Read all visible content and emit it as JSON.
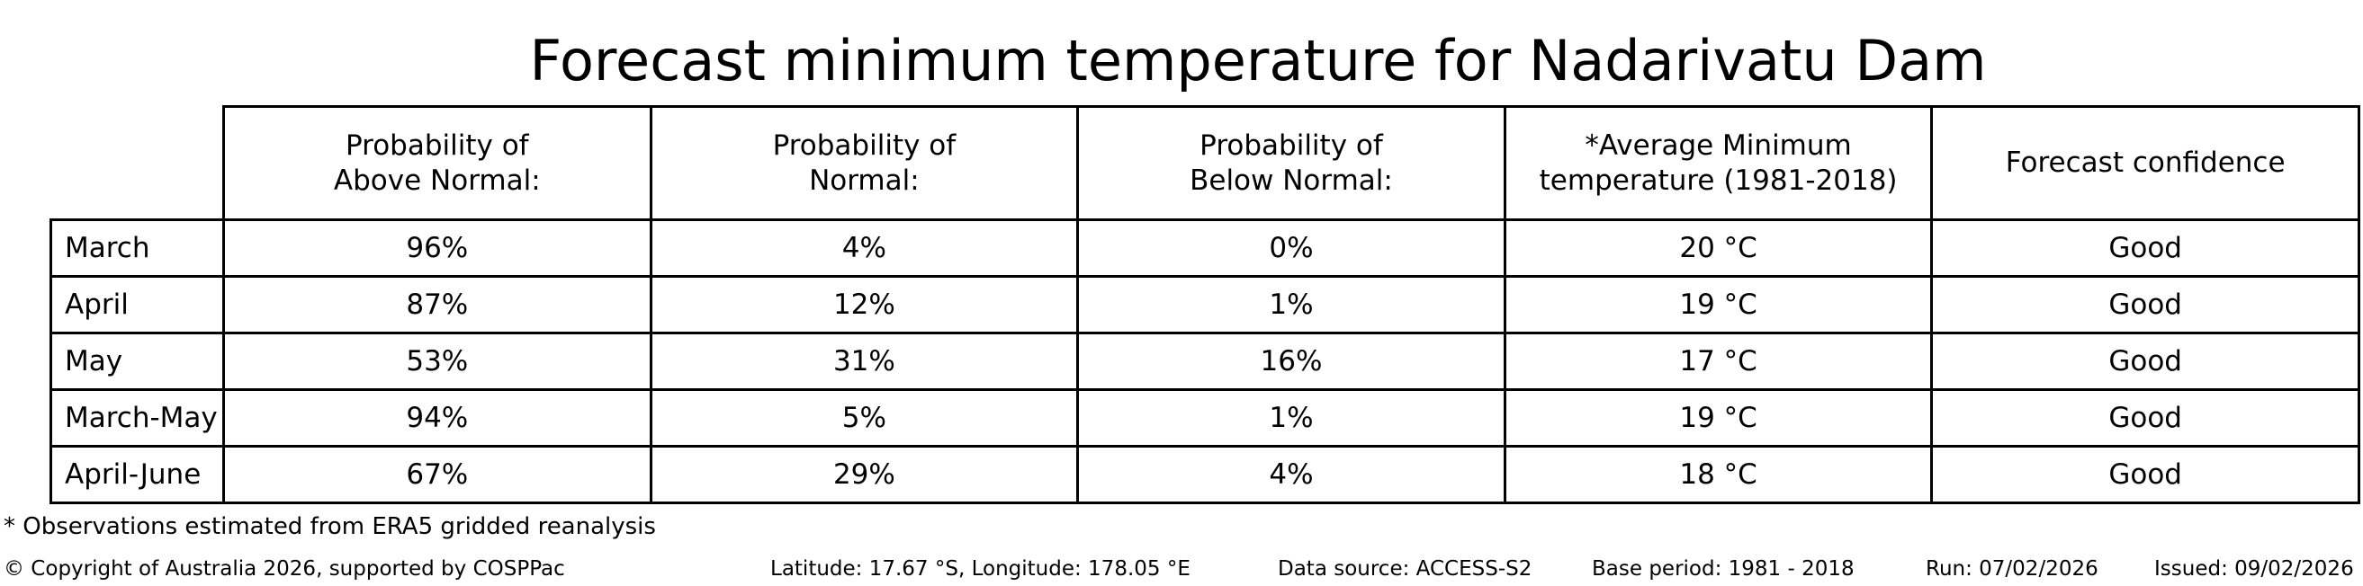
{
  "title": "Forecast minimum temperature for Nadarivatu Dam",
  "colors": {
    "background": "#ffffff",
    "text": "#000000",
    "table_border": "#000000"
  },
  "table": {
    "columns": [
      "Probability of\nAbove Normal:",
      "Probability of\nNormal:",
      "Probability of\nBelow Normal:",
      "*Average Minimum\ntemperature (1981-2018)",
      "Forecast confidence"
    ],
    "rows": [
      {
        "label": "March",
        "above": "96%",
        "normal": "4%",
        "below": "0%",
        "avg_min": "20 °C",
        "confidence": "Good"
      },
      {
        "label": "April",
        "above": "87%",
        "normal": "12%",
        "below": "1%",
        "avg_min": "19 °C",
        "confidence": "Good"
      },
      {
        "label": "May",
        "above": "53%",
        "normal": "31%",
        "below": "16%",
        "avg_min": "17 °C",
        "confidence": "Good"
      },
      {
        "label": "March-May",
        "above": "94%",
        "normal": "5%",
        "below": "1%",
        "avg_min": "19 °C",
        "confidence": "Good"
      },
      {
        "label": "April-June",
        "above": "67%",
        "normal": "29%",
        "below": "4%",
        "avg_min": "18 °C",
        "confidence": "Good"
      }
    ]
  },
  "footnote": "* Observations estimated from ERA5 gridded reanalysis",
  "footer": {
    "copyright": "© Copyright of Australia 2026, supported by COSPPac",
    "location": "Latitude: 17.67 °S, Longitude: 178.05 °E",
    "data_source": "Data source: ACCESS-S2",
    "base_period": "Base period: 1981 - 2018",
    "run": "Run: 07/02/2026",
    "issued": "Issued: 09/02/2026"
  },
  "chart_data": {
    "type": "table",
    "title": "Forecast minimum temperature for Nadarivatu Dam",
    "columns": [
      "",
      "Probability of Above Normal:",
      "Probability of Normal:",
      "Probability of Below Normal:",
      "*Average Minimum temperature (1981-2018)",
      "Forecast confidence"
    ],
    "rows": [
      [
        "March",
        "96%",
        "4%",
        "0%",
        "20 °C",
        "Good"
      ],
      [
        "April",
        "87%",
        "12%",
        "1%",
        "19 °C",
        "Good"
      ],
      [
        "May",
        "53%",
        "31%",
        "16%",
        "17 °C",
        "Good"
      ],
      [
        "March-May",
        "94%",
        "5%",
        "1%",
        "19 °C",
        "Good"
      ],
      [
        "April-June",
        "67%",
        "29%",
        "4%",
        "18 °C",
        "Good"
      ]
    ],
    "notes": {
      "probabilities_above_normal": [
        96,
        87,
        53,
        94,
        67
      ],
      "probabilities_normal": [
        4,
        12,
        31,
        5,
        29
      ],
      "probabilities_below_normal": [
        0,
        1,
        16,
        1,
        4
      ],
      "average_minimum_temperature_c": [
        20,
        19,
        17,
        19,
        18
      ],
      "forecast_confidence": [
        "Good",
        "Good",
        "Good",
        "Good",
        "Good"
      ]
    }
  }
}
